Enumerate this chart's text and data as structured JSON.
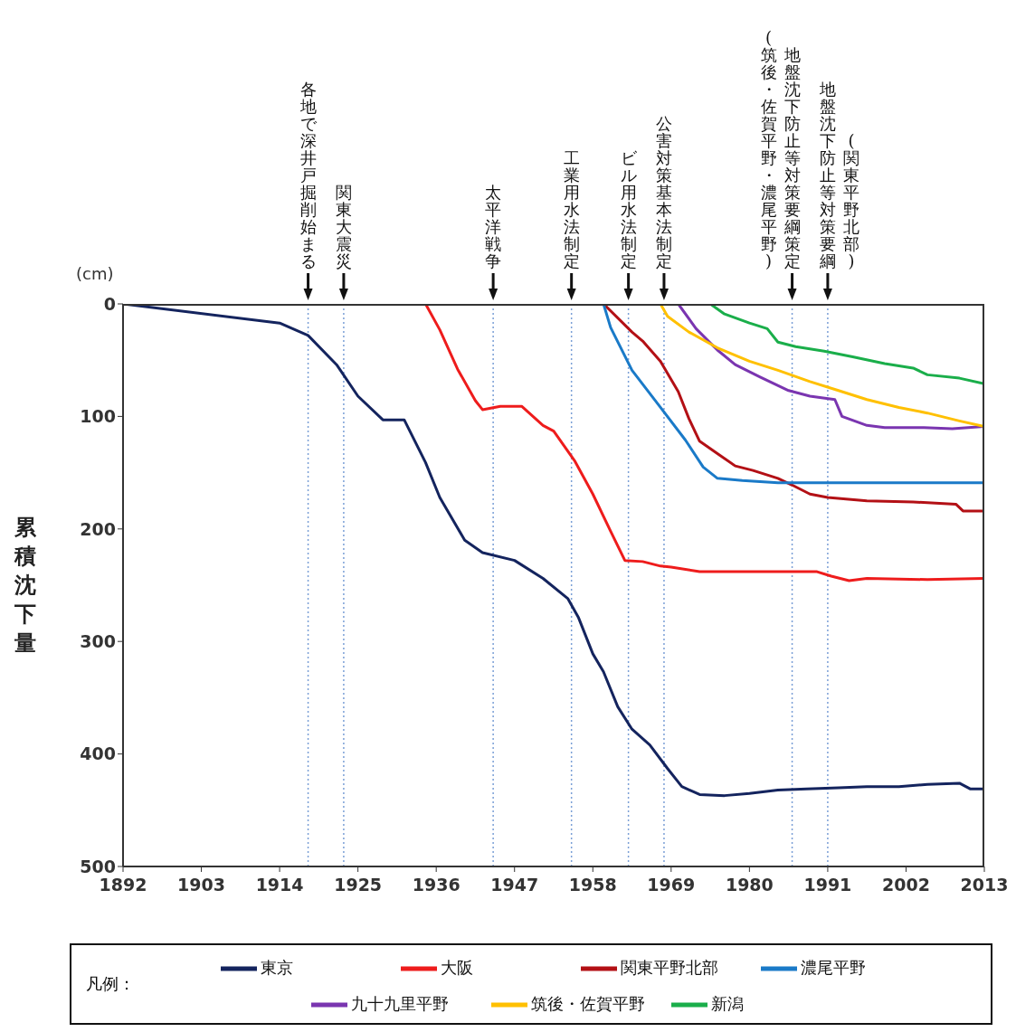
{
  "chart_data": {
    "type": "line",
    "ylabel": "累積沈下量",
    "annotations": [
      "(cm)",
      "(筑後・佐賀平野・濃尾平野)",
      "(関東平野北部)"
    ],
    "xlim": [
      1892,
      2013
    ],
    "xticks": [
      1892,
      1903,
      1914,
      1925,
      1936,
      1947,
      1958,
      1969,
      1980,
      1991,
      2002,
      2013
    ],
    "ylim": [
      500,
      0
    ],
    "yticks": [
      0,
      100,
      200,
      300,
      400,
      500
    ],
    "legend": "bottom",
    "legend_title": "凡例：",
    "ref_lines": [
      {
        "axis": "x",
        "value": 1918,
        "label": "各地で深井戸掘削始まる",
        "color": "#7a9fd6",
        "line_style": "dotted"
      },
      {
        "axis": "x",
        "value": 1923,
        "label": "関東大震災",
        "color": "#7a9fd6",
        "line_style": "dotted"
      },
      {
        "axis": "x",
        "value": 1944,
        "label": "太平洋戦争",
        "color": "#7a9fd6",
        "line_style": "dotted"
      },
      {
        "axis": "x",
        "value": 1955,
        "label": "工業用水法制定",
        "color": "#7a9fd6",
        "line_style": "dotted"
      },
      {
        "axis": "x",
        "value": 1963,
        "label": "ビル用水法制定",
        "color": "#7a9fd6",
        "line_style": "dotted"
      },
      {
        "axis": "x",
        "value": 1968,
        "label": "公害対策基本法制定",
        "color": "#7a9fd6",
        "line_style": "dotted"
      },
      {
        "axis": "x",
        "value": 1986,
        "label": "地盤沈下防止等対策要綱策定",
        "color": "#7a9fd6",
        "line_style": "dotted"
      },
      {
        "axis": "x",
        "value": 1991,
        "label": "地盤沈下防止等対策要綱",
        "color": "#7a9fd6",
        "line_style": "dotted"
      }
    ],
    "series": [
      {
        "name": "東京",
        "color": "#14245e",
        "x": [
          1892,
          1914,
          1918,
          1922,
          1925,
          1928.5,
          1931.5,
          1934.5,
          1936.5,
          1940,
          1942.5,
          1947,
          1951,
          1954.5,
          1956,
          1958,
          1959.5,
          1961.5,
          1963.5,
          1966,
          1968.5,
          1970.5,
          1973,
          1976.5,
          1980,
          1984,
          1988,
          1992.5,
          1996.5,
          2001,
          2005,
          2009.5,
          2011,
          2013
        ],
        "values": [
          0,
          17,
          28,
          54,
          82,
          103,
          103,
          141,
          172,
          210,
          221,
          228,
          244,
          262,
          279,
          311,
          327,
          358,
          378,
          392,
          413,
          429,
          436,
          437,
          435,
          432,
          431,
          430,
          429,
          429,
          427,
          426,
          431,
          431
        ]
      },
      {
        "name": "大阪",
        "color": "#ee1c1c",
        "x": [
          1934.5,
          1936.5,
          1939,
          1941.5,
          1942.5,
          1945,
          1948,
          1951,
          1952.5,
          1955.5,
          1958,
          1960.5,
          1962.5,
          1965,
          1967.5,
          1969,
          1973,
          1978,
          1985.5,
          1989.5,
          1991.5,
          1994,
          1996.5,
          2005,
          2013
        ],
        "values": [
          0,
          23,
          58,
          86,
          94,
          91,
          91,
          108,
          113,
          140,
          169,
          202,
          228,
          229,
          233,
          234,
          238,
          238,
          238,
          238,
          242,
          246,
          244,
          245,
          244
        ]
      },
      {
        "name": "関東平野北部",
        "color": "#b31015",
        "x": [
          1959.5,
          1963.5,
          1965,
          1967.5,
          1970,
          1971.5,
          1973,
          1975.5,
          1978,
          1980.5,
          1984,
          1986,
          1988.5,
          1991,
          1996.5,
          2003,
          2009,
          2010,
          2013
        ],
        "values": [
          0,
          25,
          33,
          51,
          78,
          102,
          122,
          133,
          144,
          148,
          155,
          161,
          169,
          172,
          175,
          176,
          178,
          184,
          184
        ]
      },
      {
        "name": "濃尾平野",
        "color": "#1a7ac8",
        "x": [
          1959.5,
          1960.5,
          1963.5,
          1967.5,
          1971,
          1973.5,
          1975.5,
          1979,
          1984,
          1992.5,
          2001,
          2013
        ],
        "values": [
          0,
          21,
          59,
          92,
          121,
          145,
          155,
          157,
          159,
          159,
          159,
          159
        ]
      },
      {
        "name": "九十九里平野",
        "color": "#7a35b0",
        "x": [
          1970,
          1972.5,
          1975.5,
          1978,
          1981.5,
          1985.5,
          1988.5,
          1992,
          1993,
          1996.5,
          1999,
          2004.5,
          2008.5,
          2013
        ],
        "values": [
          0,
          22,
          41,
          54,
          65,
          77,
          82,
          85,
          100,
          108,
          110,
          110,
          111,
          109
        ]
      },
      {
        "name": "筑後・佐賀平野",
        "color": "#ffc000",
        "x": [
          1967.5,
          1968.5,
          1971.5,
          1975.5,
          1980,
          1984,
          1988.5,
          1992.5,
          1996.5,
          2001,
          2005,
          2009.5,
          2013
        ],
        "values": [
          0,
          11,
          25,
          39,
          51,
          59,
          69,
          77,
          85,
          92,
          97,
          104,
          109
        ]
      },
      {
        "name": "新潟",
        "color": "#1aae4a",
        "x": [
          1974.5,
          1976.5,
          1980,
          1982.5,
          1984,
          1986.5,
          1990.5,
          1994.5,
          1999,
          2003,
          2005,
          2009.5,
          2013
        ],
        "values": [
          0,
          9,
          17,
          22,
          34,
          38,
          42,
          47,
          53,
          57,
          63,
          66,
          71
        ]
      }
    ]
  }
}
